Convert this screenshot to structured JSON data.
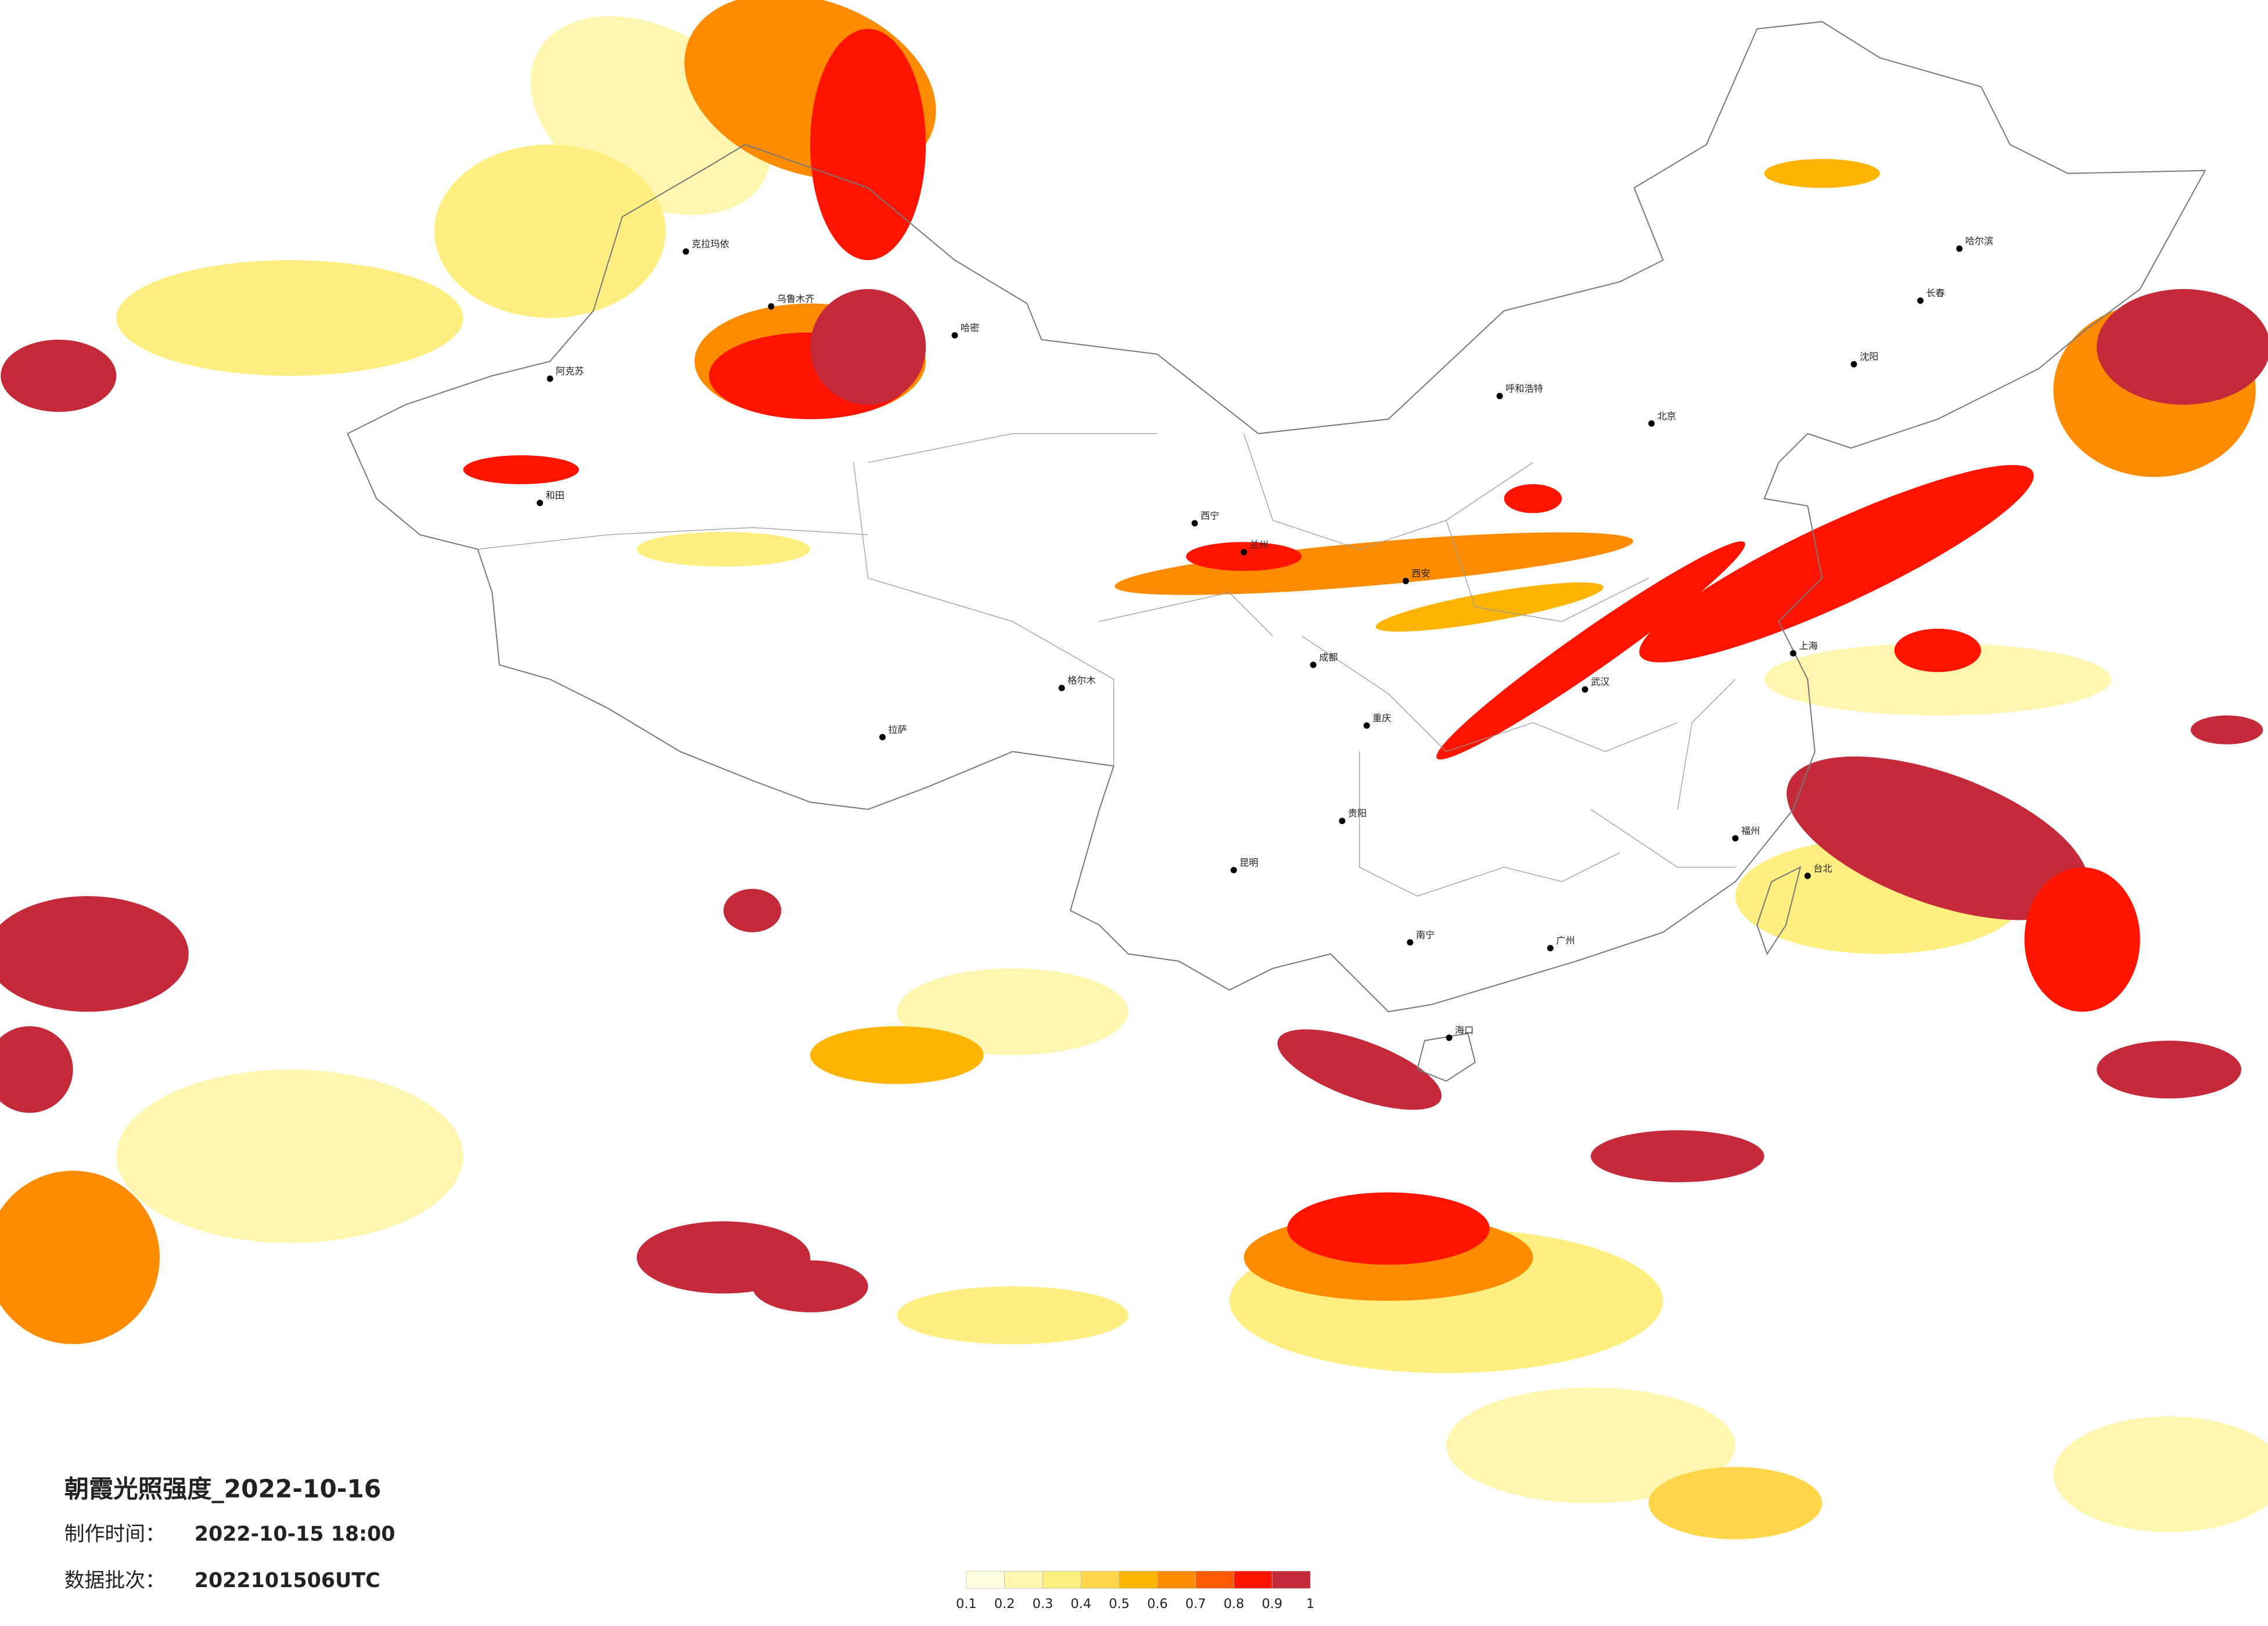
{
  "header": {
    "title": "朝霞光照强度_2022-10-16",
    "made_label": "制作时间：",
    "made_time": "2022-10-15 18:00",
    "batch_label": "数据批次：",
    "batch": "2022101506UTC"
  },
  "legend": {
    "ticks": [
      0.1,
      0.2,
      0.3,
      0.4,
      0.5,
      0.6,
      0.7,
      0.8,
      0.9,
      1
    ],
    "colors": [
      "#fffde0",
      "#fff6b0",
      "#ffee80",
      "#ffd64a",
      "#ffb400",
      "#ff8c00",
      "#ff5a00",
      "#ff1400",
      "#c42a3a"
    ]
  },
  "cities": [
    "克拉玛依",
    "乌鲁木齐",
    "哈密",
    "阿克苏",
    "和田",
    "拉萨",
    "格尔木",
    "西宁",
    "兰州",
    "呼和浩特",
    "北京",
    "哈尔滨",
    "长春",
    "沈阳",
    "西安",
    "成都",
    "重庆",
    "武汉",
    "上海",
    "贵阳",
    "昆明",
    "南宁",
    "广州",
    "福州",
    "海口",
    "台北"
  ]
}
